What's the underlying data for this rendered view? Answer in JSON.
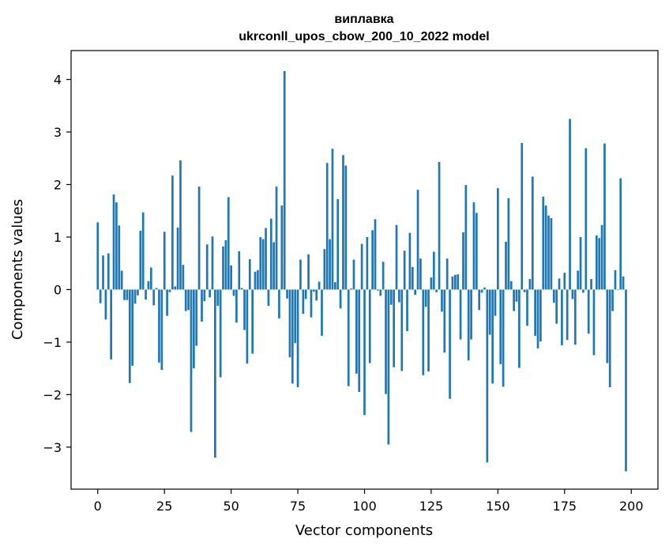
{
  "chart_data": {
    "type": "bar",
    "title_line1": "виплавка",
    "title_line2": "ukrconll_upos_cbow_200_10_2022 model",
    "xlabel": "Vector components",
    "ylabel": "Components values",
    "xlim": [
      -10,
      210
    ],
    "ylim": [
      -3.8,
      4.55
    ],
    "xticks": [
      0,
      25,
      50,
      75,
      100,
      125,
      150,
      175,
      200
    ],
    "yticks": [
      -3,
      -2,
      -1,
      0,
      1,
      2,
      3,
      4
    ],
    "bar_color": "#1f77b4",
    "values": [
      1.28,
      -0.26,
      0.65,
      -0.57,
      0.69,
      -1.33,
      1.81,
      1.66,
      1.22,
      0.36,
      -0.2,
      -0.2,
      -1.78,
      -1.45,
      -0.27,
      -0.11,
      1.12,
      1.47,
      -0.19,
      0.16,
      0.42,
      -0.3,
      0.03,
      -1.39,
      -1.53,
      1.1,
      -0.5,
      -0.05,
      2.17,
      0.06,
      1.18,
      2.46,
      0.47,
      -0.41,
      -0.39,
      -2.71,
      -1.5,
      -1.07,
      1.96,
      -0.61,
      -0.22,
      0.86,
      -0.15,
      1.01,
      -3.2,
      -0.31,
      -1.67,
      0.82,
      0.94,
      1.76,
      0.46,
      -0.12,
      -0.63,
      0.73,
      0.03,
      -0.77,
      -1.41,
      0.58,
      -1.22,
      0.34,
      0.37,
      1.0,
      0.96,
      1.17,
      -0.31,
      1.35,
      0.9,
      1.96,
      -0.55,
      1.6,
      4.16,
      -0.17,
      -1.29,
      -1.79,
      -1.02,
      -1.86,
      0.57,
      -0.46,
      -0.18,
      0.67,
      -0.53,
      -0.04,
      -0.21,
      0.15,
      -0.88,
      0.77,
      2.41,
      0.96,
      2.68,
      0.14,
      1.72,
      -0.36,
      2.56,
      2.36,
      -1.84,
      0.02,
      0.57,
      -1.6,
      -1.95,
      0.87,
      -2.39,
      1.0,
      -1.4,
      1.13,
      1.34,
      -0.02,
      -0.12,
      0.53,
      -1.99,
      -2.95,
      -0.29,
      -1.48,
      1.23,
      -0.24,
      -1.55,
      0.74,
      -0.79,
      1.08,
      0.43,
      -0.1,
      1.9,
      0.59,
      -1.63,
      -0.33,
      -1.56,
      0.23,
      0.72,
      -0.05,
      2.43,
      -0.42,
      -1.2,
      0.59,
      -2.08,
      0.25,
      0.28,
      0.29,
      -0.95,
      1.09,
      1.99,
      -1.35,
      -0.95,
      1.66,
      1.46,
      -0.39,
      -0.06,
      0.04,
      -3.29,
      -0.86,
      -1.79,
      -0.5,
      1.93,
      -1.42,
      -1.85,
      0.91,
      1.74,
      0.16,
      -0.41,
      -0.23,
      -1.49,
      2.79,
      -0.05,
      -0.69,
      0.2,
      2.15,
      -0.88,
      -1.12,
      -0.99,
      1.77,
      1.6,
      1.41,
      1.36,
      -0.25,
      -0.65,
      0.21,
      -1.06,
      0.32,
      -0.96,
      3.25,
      -0.18,
      -1.05,
      0.36,
      1.0,
      -0.06,
      2.69,
      -0.84,
      0.2,
      -1.25,
      1.03,
      0.98,
      1.23,
      2.78,
      -1.4,
      -1.86,
      -0.41,
      0.37,
      -0.01,
      2.12,
      0.25,
      -3.46
    ]
  }
}
